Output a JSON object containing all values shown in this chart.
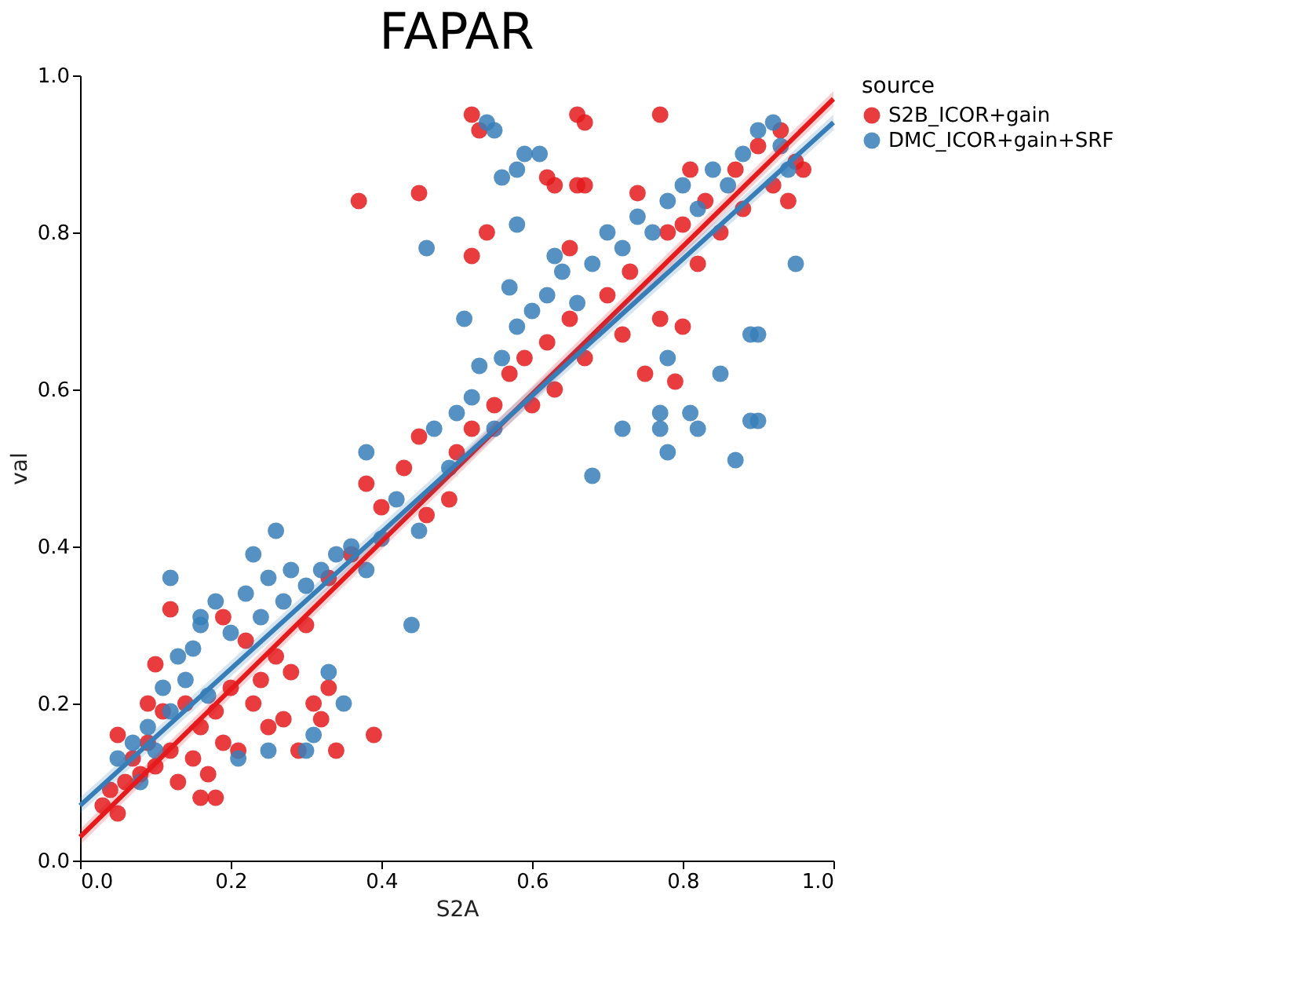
{
  "chart_data": {
    "type": "scatter",
    "title": "FAPAR",
    "xlabel": "S2A",
    "ylabel": "val",
    "legend_title": "source",
    "legend": "right",
    "grid": false,
    "marker": "circle",
    "xlim": [
      0,
      1
    ],
    "ylim": [
      0,
      1
    ],
    "xticks": [
      {
        "value": 0,
        "label": "0.0"
      },
      0.2,
      0.4,
      0.6,
      0.8,
      {
        "value": 1,
        "label": "1.0"
      }
    ],
    "yticks": [
      {
        "value": 0,
        "label": "0.0"
      },
      0.2,
      0.4,
      0.6,
      0.8,
      {
        "value": 1,
        "label": "1.0"
      }
    ],
    "series": [
      {
        "type": "line",
        "marker": "none",
        "line_style": "solid",
        "color": "#e41a1c",
        "x": [
          0,
          1
        ],
        "values": [
          0.03,
          0.97
        ],
        "lower": [
          0.02,
          0.96
        ],
        "upper": [
          0.04,
          0.98
        ]
      },
      {
        "type": "line",
        "marker": "none",
        "line_style": "solid",
        "color": "#377eb8",
        "x": [
          0,
          1
        ],
        "values": [
          0.07,
          0.94
        ],
        "lower": [
          0.06,
          0.93
        ],
        "upper": [
          0.08,
          0.95
        ]
      },
      {
        "name": "S2B_ICOR+gain",
        "color": "#e41a1c",
        "x": [
          0.03,
          0.04,
          0.05,
          0.06,
          0.07,
          0.05,
          0.08,
          0.09,
          0.1,
          0.11,
          0.12,
          0.13,
          0.14,
          0.15,
          0.16,
          0.17,
          0.18,
          0.19,
          0.2,
          0.21,
          0.22,
          0.23,
          0.24,
          0.25,
          0.26,
          0.27,
          0.28,
          0.29,
          0.31,
          0.32,
          0.33,
          0.34,
          0.39,
          0.16,
          0.18,
          0.12,
          0.19,
          0.1,
          0.09,
          0.3,
          0.33,
          0.36,
          0.38,
          0.4,
          0.43,
          0.45,
          0.46,
          0.49,
          0.5,
          0.52,
          0.55,
          0.57,
          0.59,
          0.6,
          0.62,
          0.63,
          0.65,
          0.67,
          0.7,
          0.72,
          0.73,
          0.75,
          0.77,
          0.79,
          0.78,
          0.8,
          0.82,
          0.83,
          0.85,
          0.87,
          0.88,
          0.9,
          0.92,
          0.93,
          0.95,
          0.96,
          0.94,
          0.37,
          0.45,
          0.52,
          0.53,
          0.66,
          0.67,
          0.77,
          0.54,
          0.52,
          0.62,
          0.63,
          0.66,
          0.67,
          0.74,
          0.81,
          0.8,
          0.65
        ],
        "values": [
          0.07,
          0.09,
          0.06,
          0.1,
          0.13,
          0.16,
          0.11,
          0.15,
          0.12,
          0.19,
          0.14,
          0.1,
          0.2,
          0.13,
          0.17,
          0.11,
          0.19,
          0.15,
          0.22,
          0.14,
          0.28,
          0.2,
          0.23,
          0.17,
          0.26,
          0.18,
          0.24,
          0.14,
          0.2,
          0.18,
          0.22,
          0.14,
          0.16,
          0.08,
          0.08,
          0.32,
          0.31,
          0.25,
          0.2,
          0.3,
          0.36,
          0.39,
          0.48,
          0.45,
          0.5,
          0.54,
          0.44,
          0.46,
          0.52,
          0.55,
          0.58,
          0.62,
          0.64,
          0.58,
          0.66,
          0.6,
          0.69,
          0.64,
          0.72,
          0.67,
          0.75,
          0.62,
          0.69,
          0.61,
          0.8,
          0.68,
          0.76,
          0.84,
          0.8,
          0.88,
          0.83,
          0.91,
          0.86,
          0.93,
          0.89,
          0.88,
          0.84,
          0.84,
          0.85,
          0.95,
          0.93,
          0.95,
          0.94,
          0.95,
          0.8,
          0.77,
          0.87,
          0.86,
          0.86,
          0.86,
          0.85,
          0.88,
          0.81,
          0.78
        ]
      },
      {
        "name": "DMC_ICOR+gain+SRF",
        "color": "#377eb8",
        "x": [
          0.05,
          0.07,
          0.08,
          0.09,
          0.1,
          0.11,
          0.12,
          0.13,
          0.14,
          0.15,
          0.16,
          0.17,
          0.18,
          0.2,
          0.22,
          0.23,
          0.24,
          0.25,
          0.26,
          0.27,
          0.28,
          0.3,
          0.31,
          0.33,
          0.35,
          0.3,
          0.25,
          0.21,
          0.12,
          0.16,
          0.32,
          0.34,
          0.36,
          0.38,
          0.38,
          0.4,
          0.42,
          0.44,
          0.45,
          0.47,
          0.49,
          0.5,
          0.52,
          0.53,
          0.55,
          0.56,
          0.58,
          0.6,
          0.62,
          0.64,
          0.66,
          0.68,
          0.7,
          0.72,
          0.74,
          0.76,
          0.78,
          0.8,
          0.82,
          0.84,
          0.86,
          0.88,
          0.9,
          0.92,
          0.93,
          0.94,
          0.54,
          0.55,
          0.58,
          0.59,
          0.61,
          0.56,
          0.58,
          0.51,
          0.57,
          0.63,
          0.46,
          0.68,
          0.72,
          0.77,
          0.78,
          0.82,
          0.87,
          0.89,
          0.9,
          0.89,
          0.9,
          0.95,
          0.78,
          0.85,
          0.77,
          0.81
        ],
        "values": [
          0.13,
          0.15,
          0.1,
          0.17,
          0.14,
          0.22,
          0.19,
          0.26,
          0.23,
          0.27,
          0.3,
          0.21,
          0.33,
          0.29,
          0.34,
          0.39,
          0.31,
          0.36,
          0.42,
          0.33,
          0.37,
          0.35,
          0.16,
          0.24,
          0.2,
          0.14,
          0.14,
          0.13,
          0.36,
          0.31,
          0.37,
          0.39,
          0.4,
          0.37,
          0.52,
          0.41,
          0.46,
          0.3,
          0.42,
          0.55,
          0.5,
          0.57,
          0.59,
          0.63,
          0.55,
          0.64,
          0.68,
          0.7,
          0.72,
          0.75,
          0.71,
          0.76,
          0.8,
          0.78,
          0.82,
          0.8,
          0.84,
          0.86,
          0.83,
          0.88,
          0.86,
          0.9,
          0.93,
          0.94,
          0.91,
          0.88,
          0.94,
          0.93,
          0.88,
          0.9,
          0.9,
          0.87,
          0.81,
          0.69,
          0.73,
          0.77,
          0.78,
          0.49,
          0.55,
          0.55,
          0.52,
          0.55,
          0.51,
          0.56,
          0.56,
          0.67,
          0.67,
          0.76,
          0.64,
          0.62,
          0.57,
          0.57
        ]
      }
    ]
  }
}
